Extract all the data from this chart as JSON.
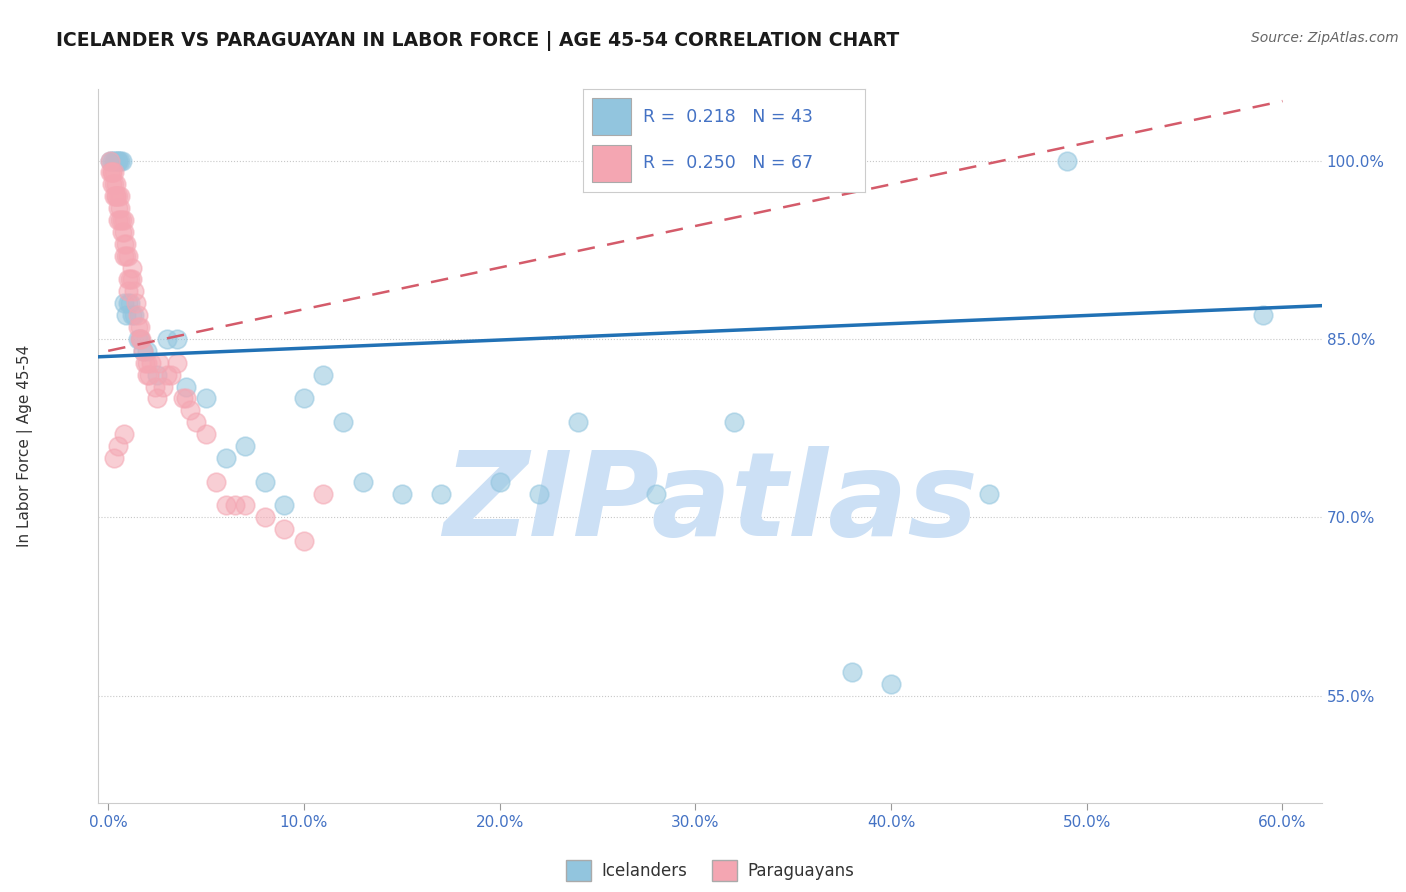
{
  "title": "ICELANDER VS PARAGUAYAN IN LABOR FORCE | AGE 45-54 CORRELATION CHART",
  "source": "Source: ZipAtlas.com",
  "ylabel": "In Labor Force | Age 45-54",
  "x_tick_labels": [
    "0.0%",
    "10.0%",
    "20.0%",
    "30.0%",
    "40.0%",
    "50.0%",
    "60.0%"
  ],
  "x_tick_vals": [
    0.0,
    0.1,
    0.2,
    0.3,
    0.4,
    0.5,
    0.6
  ],
  "y_tick_labels": [
    "55.0%",
    "70.0%",
    "85.0%",
    "100.0%"
  ],
  "y_tick_vals": [
    0.55,
    0.7,
    0.85,
    1.0
  ],
  "xlim": [
    -0.005,
    0.62
  ],
  "ylim": [
    0.46,
    1.06
  ],
  "blue_R": 0.218,
  "blue_N": 43,
  "pink_R": 0.25,
  "pink_N": 67,
  "blue_color": "#92c5de",
  "pink_color": "#f4a6b2",
  "blue_line_color": "#2171b5",
  "pink_line_color": "#d45b6a",
  "blue_scatter_x": [
    0.001,
    0.002,
    0.003,
    0.004,
    0.005,
    0.005,
    0.006,
    0.007,
    0.008,
    0.009,
    0.01,
    0.011,
    0.012,
    0.013,
    0.015,
    0.016,
    0.018,
    0.02,
    0.025,
    0.03,
    0.035,
    0.04,
    0.05,
    0.06,
    0.07,
    0.08,
    0.09,
    0.1,
    0.11,
    0.13,
    0.15,
    0.17,
    0.2,
    0.22,
    0.24,
    0.28,
    0.32,
    0.38,
    0.4,
    0.45,
    0.49,
    0.59,
    0.12
  ],
  "blue_scatter_y": [
    1.0,
    1.0,
    1.0,
    1.0,
    1.0,
    1.0,
    1.0,
    1.0,
    0.88,
    0.87,
    0.88,
    0.88,
    0.87,
    0.87,
    0.85,
    0.85,
    0.84,
    0.84,
    0.82,
    0.85,
    0.85,
    0.81,
    0.8,
    0.75,
    0.76,
    0.73,
    0.71,
    0.8,
    0.82,
    0.73,
    0.72,
    0.72,
    0.73,
    0.72,
    0.78,
    0.72,
    0.78,
    0.57,
    0.56,
    0.72,
    1.0,
    0.87,
    0.78
  ],
  "pink_scatter_x": [
    0.001,
    0.001,
    0.002,
    0.002,
    0.002,
    0.003,
    0.003,
    0.003,
    0.004,
    0.004,
    0.004,
    0.005,
    0.005,
    0.005,
    0.006,
    0.006,
    0.006,
    0.007,
    0.007,
    0.008,
    0.008,
    0.008,
    0.008,
    0.009,
    0.009,
    0.01,
    0.01,
    0.01,
    0.011,
    0.012,
    0.012,
    0.013,
    0.014,
    0.015,
    0.015,
    0.016,
    0.016,
    0.017,
    0.018,
    0.019,
    0.02,
    0.02,
    0.021,
    0.022,
    0.024,
    0.025,
    0.026,
    0.028,
    0.03,
    0.032,
    0.035,
    0.038,
    0.04,
    0.042,
    0.045,
    0.05,
    0.055,
    0.06,
    0.065,
    0.07,
    0.08,
    0.09,
    0.1,
    0.11,
    0.003,
    0.005,
    0.008
  ],
  "pink_scatter_y": [
    1.0,
    0.99,
    0.99,
    0.99,
    0.98,
    0.99,
    0.98,
    0.97,
    0.98,
    0.97,
    0.97,
    0.97,
    0.96,
    0.95,
    0.97,
    0.96,
    0.95,
    0.95,
    0.94,
    0.95,
    0.94,
    0.93,
    0.92,
    0.93,
    0.92,
    0.92,
    0.9,
    0.89,
    0.9,
    0.91,
    0.9,
    0.89,
    0.88,
    0.87,
    0.86,
    0.86,
    0.85,
    0.85,
    0.84,
    0.83,
    0.83,
    0.82,
    0.82,
    0.83,
    0.81,
    0.8,
    0.83,
    0.81,
    0.82,
    0.82,
    0.83,
    0.8,
    0.8,
    0.79,
    0.78,
    0.77,
    0.73,
    0.71,
    0.71,
    0.71,
    0.7,
    0.69,
    0.68,
    0.72,
    0.75,
    0.76,
    0.77
  ],
  "watermark": "ZIPatlas",
  "watermark_color": "#cce0f5",
  "background_color": "#ffffff",
  "grid_color": "#c8c8c8"
}
